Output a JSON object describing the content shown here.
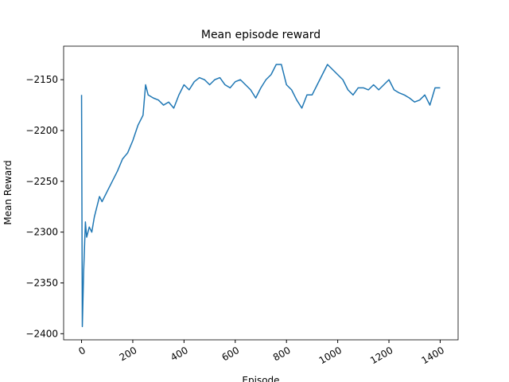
{
  "chart_data": {
    "type": "line",
    "title": "Mean episode reward",
    "x_label": "Episode",
    "y_label": "Mean Reward",
    "x": [
      0,
      3,
      8,
      15,
      20,
      30,
      40,
      50,
      60,
      70,
      80,
      100,
      120,
      140,
      160,
      180,
      200,
      220,
      240,
      250,
      260,
      280,
      300,
      320,
      340,
      360,
      380,
      400,
      420,
      440,
      460,
      480,
      500,
      520,
      540,
      560,
      580,
      600,
      620,
      640,
      660,
      680,
      700,
      720,
      740,
      760,
      780,
      800,
      820,
      840,
      860,
      880,
      900,
      920,
      940,
      960,
      980,
      1000,
      1020,
      1040,
      1060,
      1080,
      1100,
      1120,
      1140,
      1160,
      1180,
      1200,
      1220,
      1240,
      1260,
      1280,
      1300,
      1320,
      1340,
      1360,
      1380,
      1400
    ],
    "series": [
      {
        "name": "Mean Reward",
        "color": "#1f77b4",
        "values": [
          -2165,
          -2393,
          -2340,
          -2290,
          -2305,
          -2295,
          -2300,
          -2285,
          -2275,
          -2265,
          -2270,
          -2260,
          -2250,
          -2240,
          -2228,
          -2222,
          -2210,
          -2195,
          -2185,
          -2155,
          -2165,
          -2168,
          -2170,
          -2175,
          -2172,
          -2178,
          -2165,
          -2155,
          -2160,
          -2152,
          -2148,
          -2150,
          -2155,
          -2150,
          -2148,
          -2155,
          -2158,
          -2152,
          -2150,
          -2155,
          -2160,
          -2168,
          -2158,
          -2150,
          -2145,
          -2135,
          -2135,
          -2155,
          -2160,
          -2170,
          -2178,
          -2165,
          -2165,
          -2155,
          -2145,
          -2135,
          -2140,
          -2145,
          -2150,
          -2160,
          -2165,
          -2158,
          -2158,
          -2160,
          -2155,
          -2160,
          -2155,
          -2150,
          -2160,
          -2163,
          -2165,
          -2168,
          -2172,
          -2170,
          -2165,
          -2175,
          -2158,
          -2158
        ]
      }
    ],
    "xlim": [
      -70,
      1470
    ],
    "ylim": [
      -2406,
      -2117
    ],
    "xticks": [
      0,
      200,
      400,
      600,
      800,
      1000,
      1200,
      1400
    ],
    "yticks": [
      {
        "value": -2400,
        "label": "−2400"
      },
      {
        "value": -2350,
        "label": "−2350"
      },
      {
        "value": -2300,
        "label": "−2300"
      },
      {
        "value": -2250,
        "label": "−2250"
      },
      {
        "value": -2200,
        "label": "−2200"
      },
      {
        "value": -2150,
        "label": "−2150"
      }
    ]
  }
}
